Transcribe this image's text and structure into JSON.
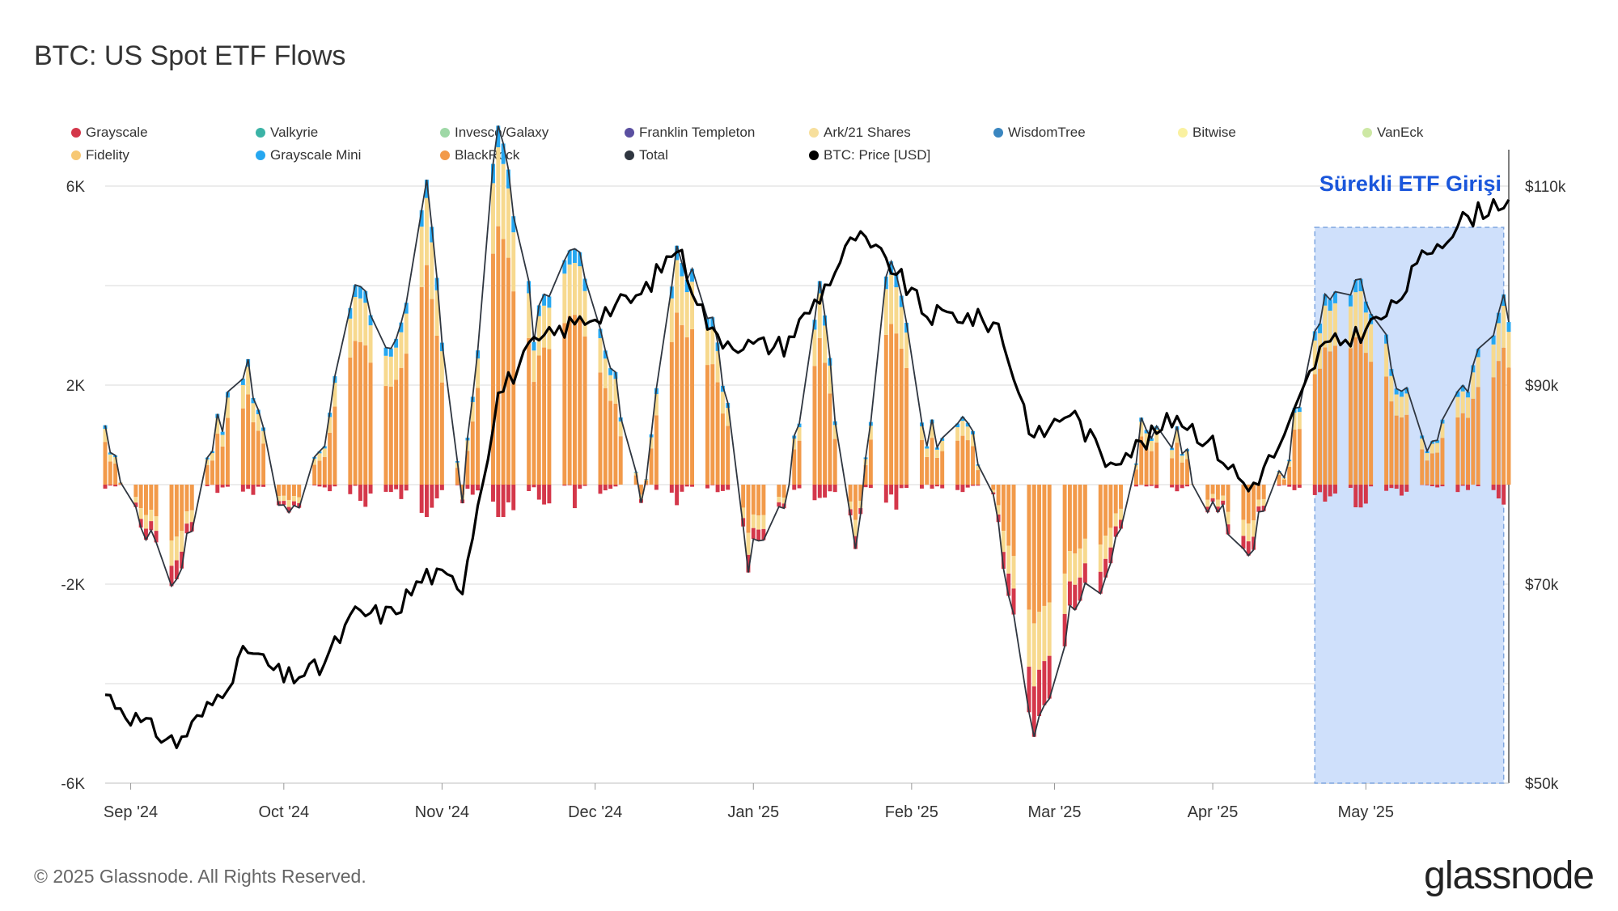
{
  "title": "BTC: US Spot ETF Flows",
  "footer": "© 2025 Glassnode. All Rights Reserved.",
  "brand": "glassnode",
  "annotation": "Sürekli ETF Girişi",
  "colors": {
    "grid": "#e6e6e6",
    "price_line": "#000000",
    "total_line": "#2f3640",
    "highlight_fill": "#cfe0fb",
    "highlight_border": "#7fa6e0",
    "annotation": "#1a56db",
    "positive_base": "#f29a4a",
    "positive_top": "#f7d98e",
    "negative_base": "#f29a4a",
    "negative_red": "#d4374a",
    "accent_blue": "#26a7f0"
  },
  "chart_data": {
    "type": "bar",
    "title": "BTC: US Spot ETF Flows",
    "legend": [
      {
        "name": "Grayscale",
        "color": "#d4374a"
      },
      {
        "name": "Valkyrie",
        "color": "#3bb3a6"
      },
      {
        "name": "Invesco/Galaxy",
        "color": "#9ed8a6"
      },
      {
        "name": "Franklin Templeton",
        "color": "#5a4fa0"
      },
      {
        "name": "Ark/21 Shares",
        "color": "#f7df9c"
      },
      {
        "name": "WisdomTree",
        "color": "#3a86c0"
      },
      {
        "name": "Bitwise",
        "color": "#faf1a0"
      },
      {
        "name": "VanEck",
        "color": "#cde8a4"
      },
      {
        "name": "Fidelity",
        "color": "#f7c874"
      },
      {
        "name": "Grayscale Mini",
        "color": "#26a7f0"
      },
      {
        "name": "BlackRock",
        "color": "#f29a4a"
      },
      {
        "name": "Total",
        "color": "#2f3640"
      },
      {
        "name": "BTC: Price [USD]",
        "color": "#000000"
      }
    ],
    "x_tick_labels": [
      "Sep '24",
      "Oct '24",
      "Nov '24",
      "Dec '24",
      "Jan '25",
      "Feb '25",
      "Mar '25",
      "Apr '25",
      "May '25"
    ],
    "y_left": {
      "ticks": [
        -6000,
        -2000,
        2000,
        6000
      ],
      "tick_labels": [
        "-6K",
        "-2K",
        "2K",
        "6K"
      ],
      "range": [
        -6000,
        6000
      ]
    },
    "y_right": {
      "ticks": [
        50000,
        70000,
        90000,
        110000
      ],
      "tick_labels": [
        "$50k",
        "$70k",
        "$90k",
        "$110k"
      ],
      "range": [
        50000,
        110000
      ]
    },
    "x_range": [
      "2024-08-27",
      "2025-05-29"
    ],
    "highlight_range": [
      "2025-04-21",
      "2025-05-28"
    ],
    "total_flow_weekly": [
      {
        "date": "2024-08-27",
        "value": 1200
      },
      {
        "date": "2024-09-03",
        "value": -800
      },
      {
        "date": "2024-09-10",
        "value": -1900
      },
      {
        "date": "2024-09-17",
        "value": 900
      },
      {
        "date": "2024-09-24",
        "value": 2400
      },
      {
        "date": "2024-10-01",
        "value": -600
      },
      {
        "date": "2024-10-08",
        "value": 400
      },
      {
        "date": "2024-10-15",
        "value": 4300
      },
      {
        "date": "2024-10-22",
        "value": 2500
      },
      {
        "date": "2024-10-29",
        "value": 5800
      },
      {
        "date": "2024-11-05",
        "value": -300
      },
      {
        "date": "2024-11-12",
        "value": 7500
      },
      {
        "date": "2024-11-19",
        "value": 3200
      },
      {
        "date": "2024-11-26",
        "value": 5000
      },
      {
        "date": "2024-12-03",
        "value": 3000
      },
      {
        "date": "2024-12-10",
        "value": -300
      },
      {
        "date": "2024-12-17",
        "value": 4500
      },
      {
        "date": "2024-12-24",
        "value": 3500
      },
      {
        "date": "2024-12-31",
        "value": -1500
      },
      {
        "date": "2025-01-07",
        "value": -600
      },
      {
        "date": "2025-01-14",
        "value": 3800
      },
      {
        "date": "2025-01-21",
        "value": -1400
      },
      {
        "date": "2025-01-28",
        "value": 4800
      },
      {
        "date": "2025-02-04",
        "value": 900
      },
      {
        "date": "2025-02-11",
        "value": 1500
      },
      {
        "date": "2025-02-18",
        "value": -800
      },
      {
        "date": "2025-02-25",
        "value": -5000
      },
      {
        "date": "2025-03-04",
        "value": -2600
      },
      {
        "date": "2025-03-11",
        "value": -1800
      },
      {
        "date": "2025-03-18",
        "value": 1100
      },
      {
        "date": "2025-03-25",
        "value": 900
      },
      {
        "date": "2025-04-01",
        "value": -500
      },
      {
        "date": "2025-04-08",
        "value": -1300
      },
      {
        "date": "2025-04-15",
        "value": 300
      },
      {
        "date": "2025-04-22",
        "value": 3500
      },
      {
        "date": "2025-04-29",
        "value": 4200
      },
      {
        "date": "2025-05-06",
        "value": 2500
      },
      {
        "date": "2025-05-13",
        "value": 700
      },
      {
        "date": "2025-05-20",
        "value": 2000
      },
      {
        "date": "2025-05-27",
        "value": 3500
      }
    ],
    "btc_price_weekly": [
      {
        "date": "2024-08-27",
        "value": 59000
      },
      {
        "date": "2024-09-03",
        "value": 56000
      },
      {
        "date": "2024-09-10",
        "value": 54000
      },
      {
        "date": "2024-09-17",
        "value": 58000
      },
      {
        "date": "2024-09-24",
        "value": 63500
      },
      {
        "date": "2024-10-01",
        "value": 60500
      },
      {
        "date": "2024-10-08",
        "value": 61500
      },
      {
        "date": "2024-10-15",
        "value": 67000
      },
      {
        "date": "2024-10-22",
        "value": 67000
      },
      {
        "date": "2024-10-29",
        "value": 71000
      },
      {
        "date": "2024-11-05",
        "value": 70000
      },
      {
        "date": "2024-11-12",
        "value": 89000
      },
      {
        "date": "2024-11-19",
        "value": 94000
      },
      {
        "date": "2024-11-26",
        "value": 96000
      },
      {
        "date": "2024-12-03",
        "value": 97500
      },
      {
        "date": "2024-12-10",
        "value": 99000
      },
      {
        "date": "2024-12-17",
        "value": 104000
      },
      {
        "date": "2024-12-24",
        "value": 95000
      },
      {
        "date": "2024-12-31",
        "value": 94000
      },
      {
        "date": "2025-01-07",
        "value": 94000
      },
      {
        "date": "2025-01-14",
        "value": 99000
      },
      {
        "date": "2025-01-21",
        "value": 105000
      },
      {
        "date": "2025-01-28",
        "value": 102000
      },
      {
        "date": "2025-02-04",
        "value": 97000
      },
      {
        "date": "2025-02-11",
        "value": 97000
      },
      {
        "date": "2025-02-18",
        "value": 96000
      },
      {
        "date": "2025-02-25",
        "value": 84500
      },
      {
        "date": "2025-03-04",
        "value": 87500
      },
      {
        "date": "2025-03-11",
        "value": 82500
      },
      {
        "date": "2025-03-18",
        "value": 84000
      },
      {
        "date": "2025-03-25",
        "value": 87000
      },
      {
        "date": "2025-04-01",
        "value": 84000
      },
      {
        "date": "2025-04-08",
        "value": 79500
      },
      {
        "date": "2025-04-15",
        "value": 84500
      },
      {
        "date": "2025-04-22",
        "value": 93500
      },
      {
        "date": "2025-04-29",
        "value": 95000
      },
      {
        "date": "2025-05-06",
        "value": 97500
      },
      {
        "date": "2025-05-13",
        "value": 103500
      },
      {
        "date": "2025-05-20",
        "value": 106500
      },
      {
        "date": "2025-05-27",
        "value": 108500
      }
    ]
  }
}
